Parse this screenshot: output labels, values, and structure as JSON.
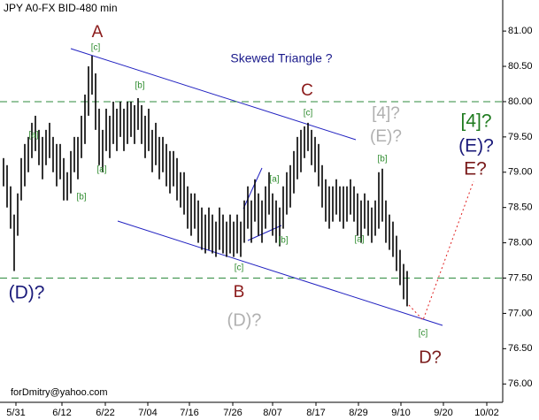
{
  "chart_data": {
    "type": "ohlc",
    "title": "JPY A0-FX BID-480 min",
    "footer": "forDmitry@yahoo.com",
    "color": "#000000",
    "x": [
      1,
      2,
      3,
      4,
      5,
      6,
      7,
      8,
      9,
      10,
      11,
      12,
      13,
      14,
      15,
      16,
      17,
      18,
      19,
      20,
      21,
      22,
      23,
      24,
      25,
      26,
      27,
      28,
      29,
      30,
      31,
      32,
      33,
      34,
      35,
      36,
      37,
      38,
      39,
      40,
      41,
      42,
      43,
      44,
      45,
      46,
      47,
      48,
      49,
      50,
      51,
      52,
      53,
      54,
      55,
      56,
      57,
      58,
      59,
      60,
      61,
      62,
      63,
      64,
      65,
      66,
      67,
      68,
      69,
      70,
      71,
      72,
      73,
      74,
      75,
      76,
      77,
      78,
      79,
      80,
      81,
      82,
      83,
      84,
      85,
      86,
      87,
      88,
      89,
      90,
      91,
      92,
      93,
      94,
      95,
      96,
      97,
      98,
      99,
      100,
      101,
      102,
      103,
      104,
      105,
      106,
      107,
      108,
      109,
      110,
      111,
      112,
      113,
      114,
      115
    ],
    "high": [
      79.2,
      79.1,
      78.8,
      78.4,
      78.7,
      79.2,
      79.4,
      79.5,
      79.7,
      79.8,
      79.6,
      79.5,
      79.6,
      79.7,
      79.5,
      79.4,
      79.4,
      79.2,
      79.0,
      79.3,
      79.5,
      79.5,
      79.8,
      80.1,
      80.5,
      80.65,
      80.4,
      79.9,
      79.6,
      79.9,
      79.8,
      80.0,
      79.9,
      80.0,
      79.9,
      80.0,
      80.0,
      79.95,
      80.05,
      79.95,
      79.8,
      79.9,
      79.6,
      79.7,
      79.5,
      79.5,
      79.4,
      79.3,
      79.3,
      79.2,
      79.0,
      79.0,
      78.8,
      78.7,
      78.7,
      78.6,
      78.5,
      78.4,
      78.5,
      78.4,
      78.3,
      78.5,
      78.4,
      78.3,
      78.4,
      78.3,
      78.4,
      78.3,
      78.6,
      78.8,
      78.6,
      78.9,
      78.7,
      78.6,
      78.8,
      79.0,
      78.7,
      78.6,
      78.5,
      78.8,
      79.0,
      79.1,
      79.3,
      79.5,
      79.6,
      79.65,
      79.7,
      79.6,
      79.5,
      79.4,
      79.1,
      78.9,
      78.8,
      78.8,
      78.9,
      78.8,
      78.8,
      78.8,
      78.9,
      78.8,
      78.7,
      78.6,
      78.7,
      78.6,
      78.5,
      78.6,
      79.0,
      79.05,
      78.6,
      78.4,
      78.3,
      78.1,
      77.9,
      77.7,
      77.6
    ],
    "low": [
      78.8,
      78.5,
      78.2,
      77.6,
      78.1,
      78.6,
      78.8,
      79.0,
      79.2,
      79.3,
      79.1,
      78.9,
      79.1,
      79.2,
      79.0,
      78.8,
      78.9,
      78.6,
      78.6,
      78.7,
      79.0,
      78.9,
      79.2,
      79.4,
      79.8,
      80.1,
      79.6,
      79.1,
      79.0,
      79.3,
      79.2,
      79.4,
      79.3,
      79.5,
      79.3,
      79.4,
      79.5,
      79.4,
      79.6,
      79.4,
      79.2,
      79.3,
      79.0,
      79.1,
      78.9,
      79.0,
      78.8,
      78.7,
      78.8,
      78.6,
      78.5,
      78.4,
      78.2,
      78.1,
      78.2,
      78.0,
      77.9,
      77.85,
      77.9,
      77.85,
      77.8,
      77.9,
      77.85,
      77.8,
      77.85,
      77.8,
      77.85,
      77.8,
      78.0,
      78.2,
      78.0,
      78.3,
      78.1,
      78.0,
      78.2,
      78.4,
      78.1,
      78.0,
      77.95,
      78.2,
      78.4,
      78.5,
      78.7,
      78.9,
      79.0,
      79.2,
      79.3,
      79.1,
      79.0,
      78.8,
      78.5,
      78.3,
      78.2,
      78.3,
      78.4,
      78.3,
      78.2,
      78.3,
      78.4,
      78.3,
      78.1,
      78.0,
      78.2,
      78.1,
      78.0,
      78.1,
      78.2,
      78.3,
      78.0,
      77.9,
      77.8,
      77.6,
      77.4,
      77.2,
      77.1
    ],
    "xlim": [
      0,
      142
    ],
    "ylim": [
      75.74,
      81.44
    ],
    "xticks": [
      {
        "value": 4.5,
        "label": "5/31"
      },
      {
        "value": 17.5,
        "label": "6/12"
      },
      {
        "value": 29.75,
        "label": "6/22"
      },
      {
        "value": 41.75,
        "label": "7/04"
      },
      {
        "value": 53.5,
        "label": "7/16"
      },
      {
        "value": 65.75,
        "label": "7/26"
      },
      {
        "value": 77,
        "label": "8/07"
      },
      {
        "value": 89.25,
        "label": "8/17"
      },
      {
        "value": 101.25,
        "label": "8/29"
      },
      {
        "value": 113.25,
        "label": "9/10"
      },
      {
        "value": 125.25,
        "label": "9/20"
      },
      {
        "value": 137.5,
        "label": "10/02"
      }
    ],
    "yticks": [
      {
        "value": 76,
        "label": "76.00"
      },
      {
        "value": 76.5,
        "label": "76.50"
      },
      {
        "value": 77,
        "label": "77.00"
      },
      {
        "value": 77.5,
        "label": "77.50"
      },
      {
        "value": 78,
        "label": "78.00"
      },
      {
        "value": 78.5,
        "label": "78.50"
      },
      {
        "value": 79,
        "label": "79.00"
      },
      {
        "value": 79.5,
        "label": "79.50"
      },
      {
        "value": 80,
        "label": "80.00"
      },
      {
        "value": 80.5,
        "label": "80.50"
      },
      {
        "value": 81,
        "label": "81.00"
      }
    ],
    "levels": [
      80,
      77.5
    ],
    "level_color": "#2e8b3e",
    "annotations": [
      {
        "text": "A",
        "color": "#8b1a1a"
      },
      {
        "text": "[c]",
        "color": "#2e8b2e"
      },
      {
        "text": "[b]",
        "color": "#2e8b2e"
      },
      {
        "text": "[a]",
        "color": "#2e8b2e"
      },
      {
        "text": "[b]",
        "color": "#2e8b2e"
      },
      {
        "text": "[a]",
        "color": "#2e8b2e"
      },
      {
        "text": "Skewed Triangle ?",
        "color": "#1a1a8b"
      },
      {
        "text": "C",
        "color": "#8b1a1a"
      },
      {
        "text": "[c]",
        "color": "#2e8b2e"
      },
      {
        "text": "[4]?",
        "color": "#b0b0b0"
      },
      {
        "text": "(E)?",
        "color": "#b0b0b0"
      },
      {
        "text": "[b]",
        "color": "#2e8b2e"
      },
      {
        "text": "[a]",
        "color": "#2e8b2e"
      },
      {
        "text": "[a]",
        "color": "#2e8b2e"
      },
      {
        "text": "[b]",
        "color": "#2e8b2e"
      },
      {
        "text": "[4]?",
        "color": "#1e7a1e"
      },
      {
        "text": "(E)?",
        "color": "#1a1a7a"
      },
      {
        "text": "E?",
        "color": "#7a1a1a"
      },
      {
        "text": "[c]",
        "color": "#2e8b2e"
      },
      {
        "text": "B",
        "color": "#8b1a1a"
      },
      {
        "text": "(D)?",
        "color": "#b0b0b0"
      },
      {
        "text": "(D)?",
        "color": "#1a1a7a"
      },
      {
        "text": "[c]",
        "color": "#2e8b2e"
      },
      {
        "text": "D?",
        "color": "#7a1a1a"
      }
    ]
  }
}
